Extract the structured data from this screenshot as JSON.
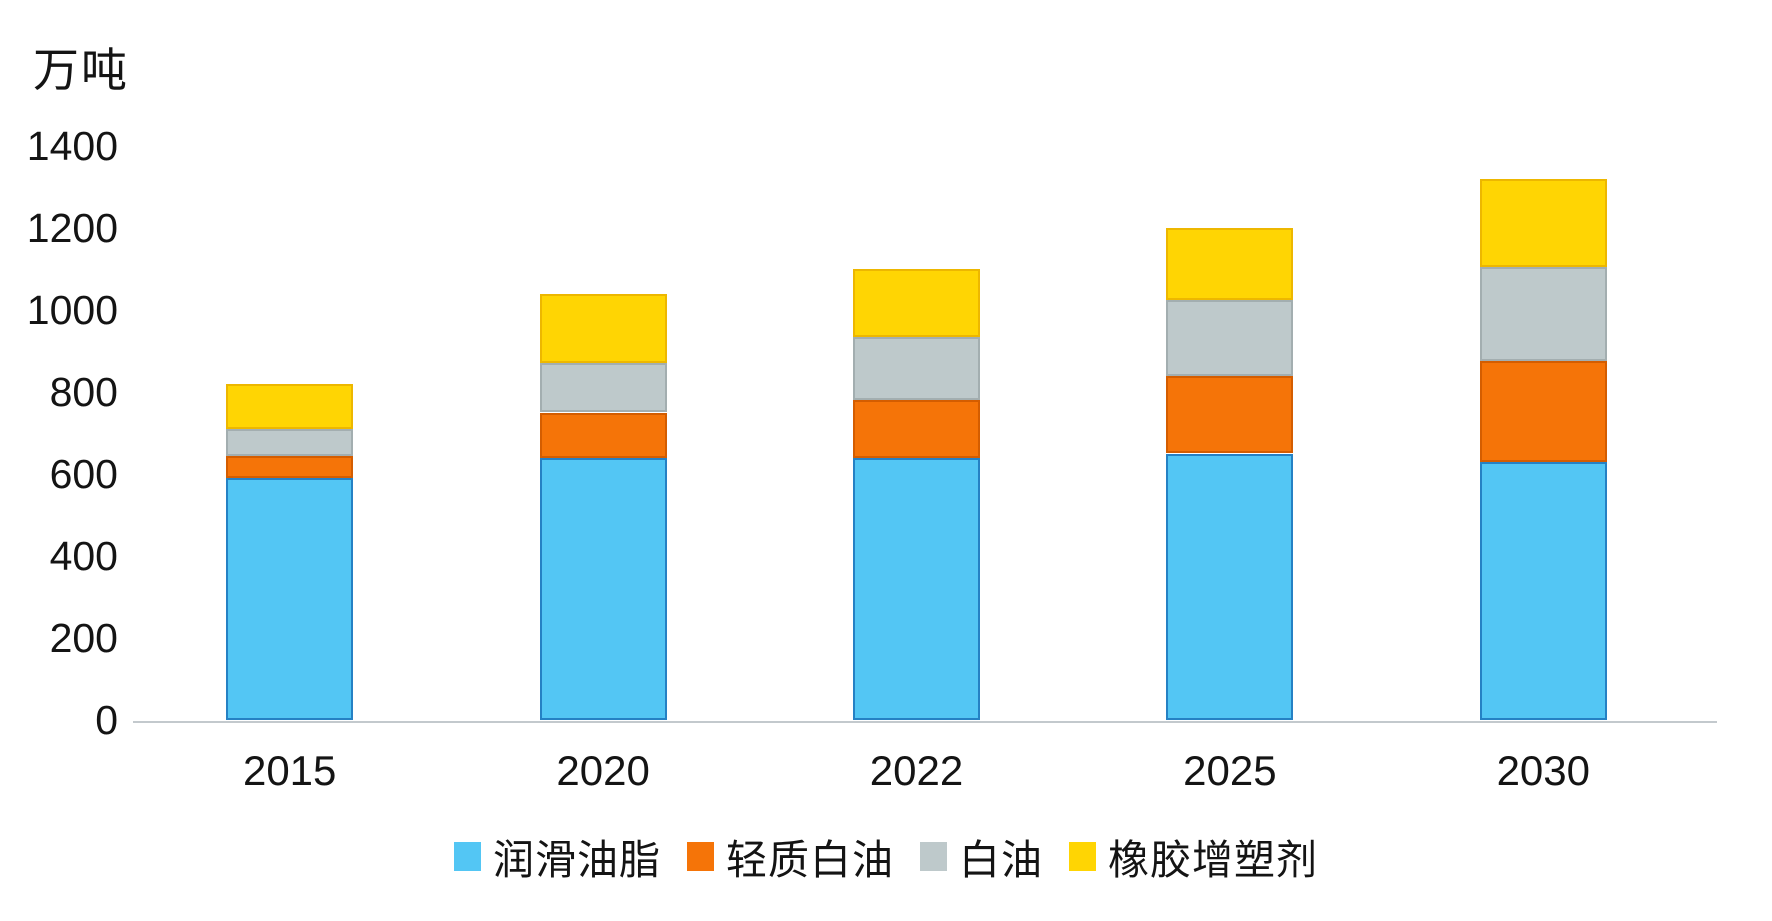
{
  "chart_data": {
    "type": "bar",
    "stacked": true,
    "title": "",
    "ylabel": "万吨",
    "xlabel": "",
    "ylim": [
      0,
      1400
    ],
    "ytick_step": 200,
    "yticks": [
      "0",
      "200",
      "400",
      "600",
      "800",
      "1000",
      "1200",
      "1400"
    ],
    "grid": false,
    "legend_position": "bottom",
    "categories": [
      "2015",
      "2020",
      "2022",
      "2025",
      "2030"
    ],
    "series": [
      {
        "name": "润滑油脂",
        "color": "#53c6f4",
        "border_color": "#2581c4",
        "values": [
          590,
          640,
          640,
          650,
          630
        ]
      },
      {
        "name": "轻质白油",
        "color": "#f57408",
        "border_color": "#d45d00",
        "values": [
          55,
          110,
          140,
          190,
          245
        ]
      },
      {
        "name": "白油",
        "color": "#bec9cb",
        "border_color": "#a3aeb0",
        "values": [
          65,
          120,
          155,
          185,
          230
        ]
      },
      {
        "name": "橡胶增塑剂",
        "color": "#ffd503",
        "border_color": "#edb700",
        "values": [
          110,
          170,
          165,
          175,
          215
        ]
      }
    ],
    "totals": [
      820,
      1040,
      1100,
      1200,
      1320
    ],
    "axis_color": "#c3c9cd",
    "text_color": "#141414"
  }
}
